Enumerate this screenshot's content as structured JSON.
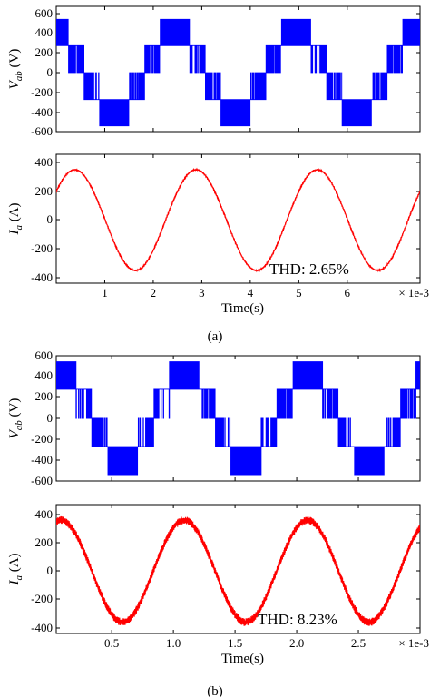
{
  "chart_data": [
    {
      "type": "line",
      "panel": "a-top",
      "ylabel_main": "V",
      "ylabel_sub": "ab",
      "ylabel_unit": " (V)",
      "xlim": [
        0,
        7.5
      ],
      "ylim": [
        -600,
        600
      ],
      "yticks": [
        600,
        400,
        200,
        0,
        -200,
        -400,
        -600
      ],
      "color": "#0000ff",
      "series": [
        {
          "waveform": "pwm-multilevel-line-voltage",
          "fundamental_hz": 400,
          "levels": [
            -540,
            -270,
            0,
            270,
            540
          ]
        }
      ]
    },
    {
      "type": "line",
      "panel": "a-bottom",
      "ylabel_main": "I",
      "ylabel_sub": "a",
      "ylabel_unit": " (A)",
      "xlabel": "Time(s)",
      "xlim": [
        0,
        7.5
      ],
      "ylim": [
        -450,
        450
      ],
      "yticks": [
        400,
        200,
        0,
        -200,
        -400
      ],
      "xticks": [
        1,
        2,
        3,
        4,
        5,
        6
      ],
      "x_multiplier": "× 1e-3",
      "annotation": "THD: 2.65%",
      "color": "#ff0000",
      "series": [
        {
          "waveform": "sine",
          "amplitude": 350,
          "fundamental_hz": 400,
          "offset_at_zero": 200
        }
      ]
    },
    {
      "type": "line",
      "panel": "b-top",
      "ylabel_main": "V",
      "ylabel_sub": "ab",
      "ylabel_unit": " (V)",
      "xlim": [
        0.05,
        3.0
      ],
      "ylim": [
        -600,
        600
      ],
      "yticks": [
        600,
        400,
        200,
        0,
        -200,
        -400,
        -600
      ],
      "color": "#0000ff",
      "series": [
        {
          "waveform": "pwm-multilevel-line-voltage",
          "fundamental_hz": 1000,
          "levels": [
            -540,
            -270,
            0,
            270,
            540
          ]
        }
      ]
    },
    {
      "type": "line",
      "panel": "b-bottom",
      "ylabel_main": "I",
      "ylabel_sub": "a",
      "ylabel_unit": " (A)",
      "xlabel": "Time(s)",
      "xlim": [
        0.05,
        3.0
      ],
      "ylim": [
        -450,
        450
      ],
      "yticks": [
        400,
        200,
        0,
        -200,
        -400
      ],
      "xticks": [
        0.5,
        1.0,
        1.5,
        2.0,
        2.5
      ],
      "xticklabels": [
        "0.5",
        "1.0",
        "1.5",
        "2.0",
        "2.5"
      ],
      "x_multiplier": "× 1e-3",
      "annotation": "THD: 8.23%",
      "color": "#ff0000",
      "series": [
        {
          "waveform": "sine",
          "amplitude": 360,
          "fundamental_hz": 1000,
          "offset_at_zero": 350
        }
      ]
    }
  ],
  "captions": {
    "a": "(a)",
    "b": "(b)"
  }
}
